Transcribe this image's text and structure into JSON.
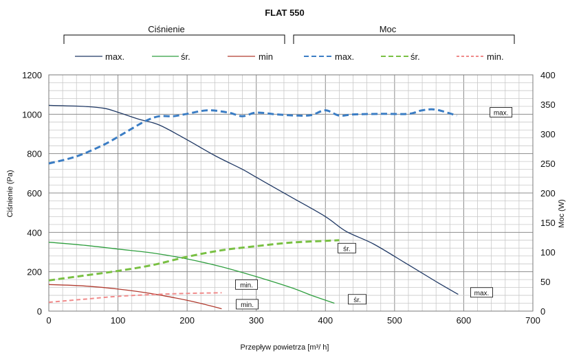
{
  "chart_data": {
    "type": "line",
    "title": "FLAT 550",
    "group_headers": {
      "left": "Ciśnienie",
      "right": "Moc"
    },
    "xlabel": "Przepływ powietrza [m³/ h]",
    "ylabel_left": "Ciśnienie (Pa)",
    "ylabel_right": "Moc (W)",
    "xlim": [
      0,
      700
    ],
    "ylim_left": [
      0,
      1200
    ],
    "ylim_right": [
      0,
      400
    ],
    "x_ticks": [
      "0",
      "100",
      "200",
      "300",
      "400",
      "500",
      "600",
      "700"
    ],
    "y_left_ticks": [
      "0",
      "200",
      "400",
      "600",
      "800",
      "1000",
      "1200"
    ],
    "y_right_ticks": [
      "0",
      "50",
      "100",
      "150",
      "200",
      "250",
      "300",
      "350",
      "400"
    ],
    "grid": true,
    "legend_placement": "top",
    "series": [
      {
        "name": "max.",
        "group": "Ciśnienie",
        "axis": "left",
        "style": "solid",
        "color": "#1f3864",
        "x": [
          0,
          50,
          80,
          100,
          130,
          160,
          200,
          240,
          280,
          300,
          350,
          400,
          430,
          470,
          520,
          560,
          592
        ],
        "y": [
          1045,
          1040,
          1030,
          1010,
          975,
          945,
          870,
          790,
          720,
          680,
          580,
          480,
          405,
          340,
          235,
          150,
          85
        ]
      },
      {
        "name": "śr.",
        "group": "Ciśnienie",
        "axis": "left",
        "style": "solid",
        "color": "#2e9e3e",
        "x": [
          0,
          50,
          100,
          150,
          200,
          250,
          300,
          350,
          380,
          413
        ],
        "y": [
          350,
          335,
          315,
          295,
          265,
          225,
          175,
          120,
          80,
          40
        ]
      },
      {
        "name": "min",
        "group": "Ciśnienie",
        "axis": "left",
        "style": "solid",
        "color": "#b03a2e",
        "x": [
          0,
          50,
          100,
          150,
          200,
          230,
          250
        ],
        "y": [
          135,
          128,
          112,
          88,
          55,
          30,
          12
        ]
      },
      {
        "name": "max.",
        "group": "Moc",
        "axis": "right",
        "style": "dashed",
        "color": "#3b7dc4",
        "x": [
          0,
          40,
          80,
          110,
          140,
          160,
          180,
          200,
          230,
          260,
          280,
          300,
          330,
          360,
          380,
          400,
          420,
          440,
          480,
          520,
          540,
          560,
          590
        ],
        "y": [
          250,
          262,
          282,
          302,
          322,
          330,
          330,
          334,
          340,
          336,
          330,
          336,
          333,
          331,
          332,
          340,
          331,
          333,
          334,
          334,
          340,
          341,
          331
        ]
      },
      {
        "name": "śr.",
        "group": "Moc",
        "axis": "right",
        "style": "dashed",
        "color": "#79c043",
        "x": [
          0,
          50,
          100,
          150,
          200,
          250,
          300,
          350,
          400,
          420
        ],
        "y": [
          52,
          60,
          68,
          78,
          92,
          103,
          110,
          116,
          119,
          120
        ]
      },
      {
        "name": "min.",
        "group": "Moc",
        "axis": "right",
        "style": "dashed",
        "color": "#f08a8a",
        "x": [
          0,
          50,
          100,
          150,
          200,
          250
        ],
        "y": [
          15,
          20,
          25,
          28,
          30,
          31
        ]
      }
    ],
    "annotations": [
      {
        "text": "max.",
        "series": "Moc max.",
        "x": 640,
        "y": 1010,
        "axis": "left"
      },
      {
        "text": "śr.",
        "series": "Moc śr.",
        "x": 420,
        "y": 320,
        "axis": "left"
      },
      {
        "text": "min.",
        "series": "Moc min.",
        "x": 272,
        "y": 135,
        "axis": "left"
      },
      {
        "text": "max.",
        "series": "Ciśnienie max.",
        "x": 612,
        "y": 95,
        "axis": "left"
      },
      {
        "text": "śr.",
        "series": "Ciśnienie śr.",
        "x": 435,
        "y": 60,
        "axis": "left"
      },
      {
        "text": "min.",
        "series": "Ciśnienie min",
        "x": 273,
        "y": 35,
        "axis": "left"
      }
    ]
  }
}
